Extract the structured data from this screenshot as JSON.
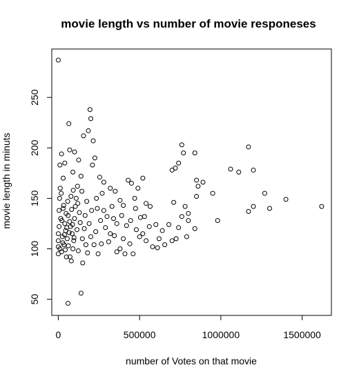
{
  "chart_data": {
    "type": "scatter",
    "title": "movie length vs number of movie responeses",
    "xlabel": "number of Votes on that movie",
    "ylabel": "movie length in minuts",
    "xlim": [
      -40000,
      1680000
    ],
    "ylim": [
      34,
      298
    ],
    "x_ticks": [
      0,
      500000,
      1000000,
      1500000
    ],
    "x_tick_labels": [
      "0",
      "500000",
      "1000000",
      "1500000"
    ],
    "y_ticks": [
      50,
      100,
      150,
      200,
      250
    ],
    "y_tick_labels": [
      "50",
      "100",
      "150",
      "200",
      "250"
    ],
    "grid": false,
    "legend": "none",
    "marker": "open-circle",
    "points": [
      [
        0,
        287
      ],
      [
        65000,
        224
      ],
      [
        195000,
        238
      ],
      [
        200000,
        229
      ],
      [
        215000,
        207
      ],
      [
        155000,
        212
      ],
      [
        185000,
        217
      ],
      [
        40000,
        185
      ],
      [
        70000,
        198
      ],
      [
        100000,
        196
      ],
      [
        125000,
        188
      ],
      [
        10000,
        183
      ],
      [
        20000,
        194
      ],
      [
        30000,
        170
      ],
      [
        90000,
        176
      ],
      [
        140000,
        172
      ],
      [
        210000,
        183
      ],
      [
        225000,
        190
      ],
      [
        255000,
        171
      ],
      [
        280000,
        166
      ],
      [
        320000,
        160
      ],
      [
        350000,
        157
      ],
      [
        380000,
        148
      ],
      [
        400000,
        143
      ],
      [
        430000,
        168
      ],
      [
        450000,
        165
      ],
      [
        470000,
        150
      ],
      [
        490000,
        160
      ],
      [
        520000,
        170
      ],
      [
        540000,
        145
      ],
      [
        760000,
        203
      ],
      [
        770000,
        195
      ],
      [
        720000,
        180
      ],
      [
        700000,
        178
      ],
      [
        740000,
        185
      ],
      [
        840000,
        195
      ],
      [
        850000,
        168
      ],
      [
        860000,
        162
      ],
      [
        890000,
        166
      ],
      [
        950000,
        155
      ],
      [
        1060000,
        179
      ],
      [
        1110000,
        176
      ],
      [
        1170000,
        201
      ],
      [
        1200000,
        178
      ],
      [
        1270000,
        155
      ],
      [
        1400000,
        149
      ],
      [
        1620000,
        142
      ],
      [
        1300000,
        140
      ],
      [
        1200000,
        142
      ],
      [
        1170000,
        137
      ],
      [
        980000,
        128
      ],
      [
        850000,
        152
      ],
      [
        800000,
        135
      ],
      [
        780000,
        142
      ],
      [
        760000,
        132
      ],
      [
        740000,
        121
      ],
      [
        800000,
        128
      ],
      [
        790000,
        112
      ],
      [
        840000,
        120
      ],
      [
        700000,
        108
      ],
      [
        680000,
        124
      ],
      [
        640000,
        118
      ],
      [
        620000,
        110
      ],
      [
        600000,
        124
      ],
      [
        580000,
        102
      ],
      [
        560000,
        122
      ],
      [
        540000,
        108
      ],
      [
        520000,
        115
      ],
      [
        500000,
        112
      ],
      [
        480000,
        119
      ],
      [
        460000,
        95
      ],
      [
        440000,
        105
      ],
      [
        420000,
        123
      ],
      [
        400000,
        110
      ],
      [
        380000,
        100
      ],
      [
        360000,
        97
      ],
      [
        340000,
        130
      ],
      [
        320000,
        115
      ],
      [
        300000,
        132
      ],
      [
        280000,
        138
      ],
      [
        260000,
        128
      ],
      [
        240000,
        140
      ],
      [
        220000,
        104
      ],
      [
        200000,
        112
      ],
      [
        180000,
        96
      ],
      [
        160000,
        120
      ],
      [
        150000,
        86
      ],
      [
        140000,
        56
      ],
      [
        120000,
        145
      ],
      [
        110000,
        150
      ],
      [
        100000,
        130
      ],
      [
        95000,
        108
      ],
      [
        90000,
        100
      ],
      [
        85000,
        115
      ],
      [
        80000,
        88
      ],
      [
        75000,
        122
      ],
      [
        70000,
        127
      ],
      [
        60000,
        133
      ],
      [
        55000,
        110
      ],
      [
        50000,
        92
      ],
      [
        45000,
        118
      ],
      [
        40000,
        125
      ],
      [
        35000,
        104
      ],
      [
        30000,
        140
      ],
      [
        25000,
        112
      ],
      [
        20000,
        97
      ],
      [
        15000,
        130
      ],
      [
        10000,
        100
      ],
      [
        5000,
        122
      ],
      [
        0,
        108
      ],
      [
        0,
        115
      ],
      [
        0,
        102
      ],
      [
        0,
        95
      ],
      [
        60000,
        46
      ],
      [
        5000,
        138
      ],
      [
        8000,
        150
      ],
      [
        12000,
        160
      ],
      [
        18000,
        155
      ],
      [
        22000,
        128
      ],
      [
        28000,
        106
      ],
      [
        33000,
        143
      ],
      [
        38000,
        114
      ],
      [
        43000,
        99
      ],
      [
        48000,
        135
      ],
      [
        52000,
        121
      ],
      [
        58000,
        147
      ],
      [
        62000,
        103
      ],
      [
        67000,
        116
      ],
      [
        72000,
        92
      ],
      [
        78000,
        152
      ],
      [
        82000,
        139
      ],
      [
        88000,
        124
      ],
      [
        92000,
        158
      ],
      [
        97000,
        111
      ],
      [
        105000,
        142
      ],
      [
        115000,
        119
      ],
      [
        118000,
        162
      ],
      [
        123000,
        98
      ],
      [
        130000,
        136
      ],
      [
        135000,
        126
      ],
      [
        145000,
        157
      ],
      [
        148000,
        110
      ],
      [
        165000,
        133
      ],
      [
        170000,
        104
      ],
      [
        175000,
        147
      ],
      [
        190000,
        125
      ],
      [
        205000,
        138
      ],
      [
        230000,
        117
      ],
      [
        235000,
        150
      ],
      [
        245000,
        95
      ],
      [
        265000,
        105
      ],
      [
        270000,
        155
      ],
      [
        290000,
        121
      ],
      [
        310000,
        107
      ],
      [
        330000,
        142
      ],
      [
        345000,
        113
      ],
      [
        360000,
        125
      ],
      [
        390000,
        133
      ],
      [
        410000,
        95
      ],
      [
        445000,
        128
      ],
      [
        475000,
        140
      ],
      [
        505000,
        131
      ],
      [
        530000,
        132
      ],
      [
        565000,
        142
      ],
      [
        610000,
        101
      ],
      [
        655000,
        104
      ],
      [
        710000,
        146
      ],
      [
        725000,
        110
      ]
    ]
  }
}
